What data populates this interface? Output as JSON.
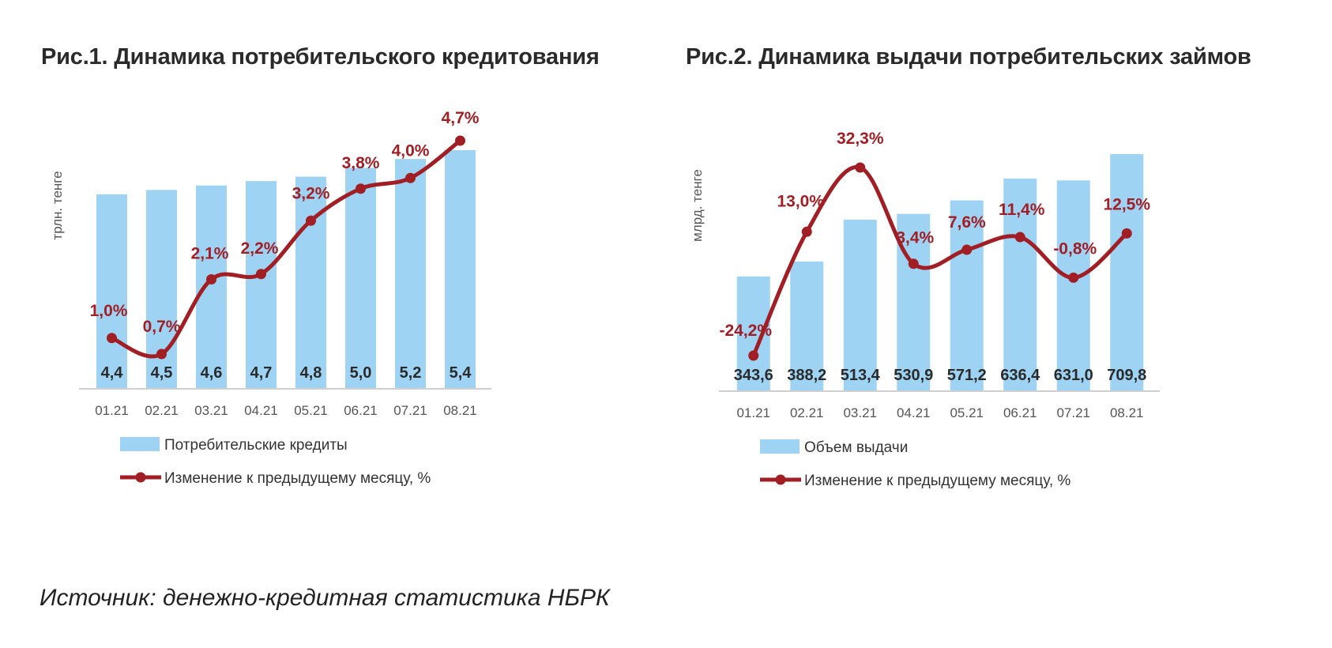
{
  "titles": {
    "fig1": "Рис.1. Динамика потребительского кредитования",
    "fig2": "Рис.2. Динамика выдачи потребительских займов"
  },
  "source": "Источник: денежно-кредитная статистика НБРК",
  "colors": {
    "bar": "#9fd3f3",
    "line": "#a01e24",
    "axis": "#cfcfcf"
  },
  "chart_data": [
    {
      "type": "bar",
      "categories": [
        "01.21",
        "02.21",
        "03.21",
        "04.21",
        "05.21",
        "06.21",
        "07.21",
        "08.21"
      ],
      "ylabel": "трлн. тенге",
      "bar_labels": [
        "4,4",
        "4,5",
        "4,6",
        "4,7",
        "4,8",
        "5,0",
        "5,2",
        "5,4"
      ],
      "series": [
        {
          "name": "Потребительские кредиты",
          "type": "bar",
          "values": [
            4.4,
            4.5,
            4.6,
            4.7,
            4.8,
            5.0,
            5.2,
            5.4
          ]
        },
        {
          "name": "Изменение к предыдущему месяцу, %",
          "type": "line",
          "values": [
            1.0,
            0.7,
            2.1,
            2.2,
            3.2,
            3.8,
            4.0,
            4.7
          ],
          "labels": [
            "1,0%",
            "0,7%",
            "2,1%",
            "2,2%",
            "3,2%",
            "3,8%",
            "4,0%",
            "4,7%"
          ]
        }
      ],
      "legend_position": "bottom"
    },
    {
      "type": "bar",
      "categories": [
        "01.21",
        "02.21",
        "03.21",
        "04.21",
        "05.21",
        "06.21",
        "07.21",
        "08.21"
      ],
      "ylabel": "млрд. тенге",
      "bar_labels": [
        "343,6",
        "388,2",
        "513,4",
        "530,9",
        "571,2",
        "636,4",
        "631,0",
        "709,8"
      ],
      "series": [
        {
          "name": "Объем выдачи",
          "type": "bar",
          "values": [
            343.6,
            388.2,
            513.4,
            530.9,
            571.2,
            636.4,
            631.0,
            709.8
          ]
        },
        {
          "name": "Изменение к предыдущему месяцу, %",
          "type": "line",
          "values": [
            -24.2,
            13.0,
            32.3,
            3.4,
            7.6,
            11.4,
            -0.8,
            12.5
          ],
          "labels": [
            "-24,2%",
            "13,0%",
            "32,3%",
            "3,4%",
            "7,6%",
            "11,4%",
            "-0,8%",
            "12,5%"
          ]
        }
      ],
      "legend_position": "bottom"
    }
  ]
}
